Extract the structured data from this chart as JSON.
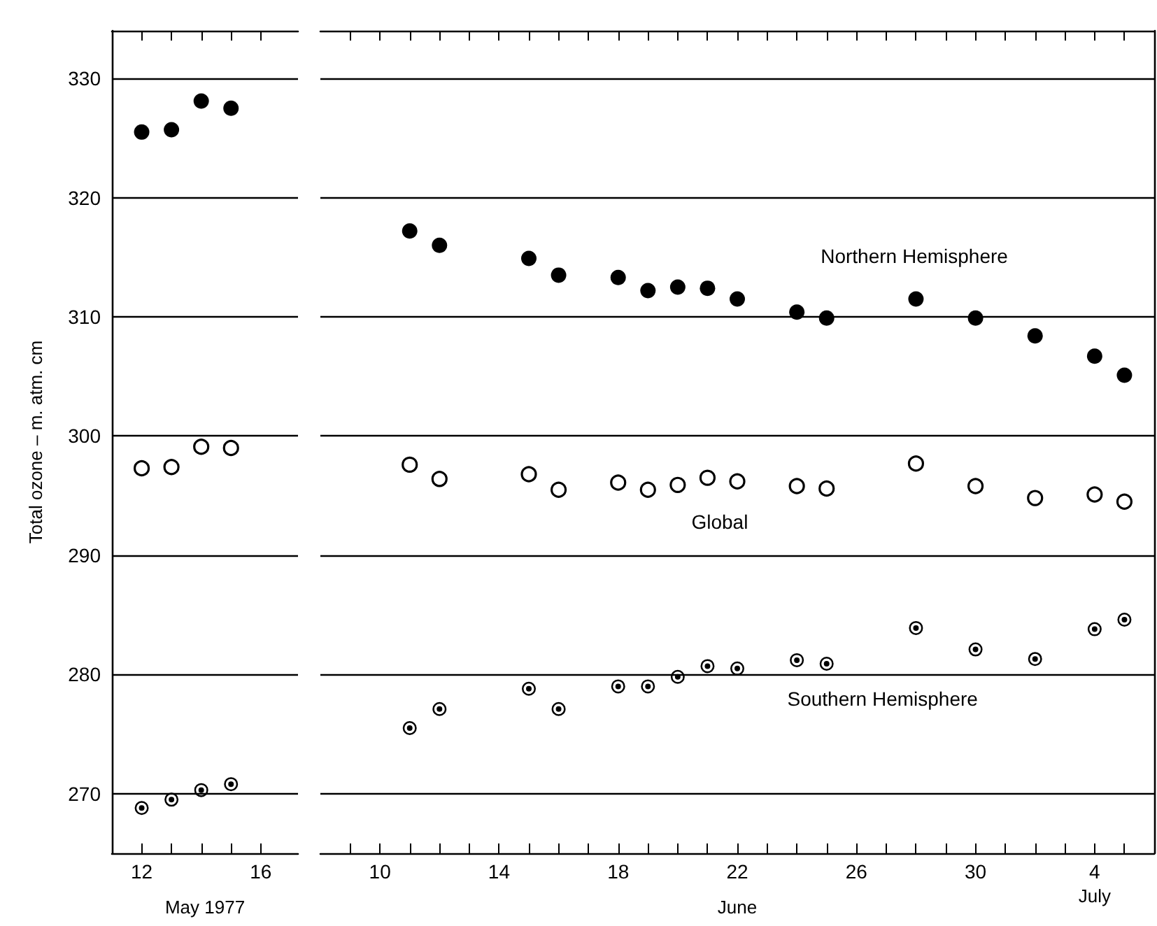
{
  "chart_data": [
    {
      "type": "scatter",
      "ylabel": "Total ozone – m. atm. cm",
      "xlabel": "May 1977",
      "x": [
        "1977-05-12",
        "1977-05-13",
        "1977-05-14",
        "1977-05-15"
      ],
      "series": [
        {
          "color": "#000000",
          "marker": "circle",
          "values": [
            325.5,
            325.7,
            328.1,
            327.5
          ]
        },
        {
          "color": "#000000",
          "marker": "circle",
          "values": [
            297.3,
            297.4,
            299.1,
            299.0
          ]
        },
        {
          "color": "#000000",
          "marker": "circle",
          "values": [
            268.8,
            269.5,
            270.3,
            270.8
          ]
        }
      ],
      "xlim": [
        "1977-05-11",
        "1977-05-17T06:00"
      ],
      "xticks": [
        {
          "value": "1977-05-12",
          "label": "12"
        },
        {
          "value": "1977-05-13",
          "label": null
        },
        {
          "value": "1977-05-14",
          "label": null
        },
        {
          "value": "1977-05-15",
          "label": null
        },
        {
          "value": "1977-05-16",
          "label": "16"
        }
      ],
      "ylim": [
        265,
        334
      ],
      "yticks": [
        270,
        280,
        290,
        300,
        310,
        320,
        330
      ],
      "grid": "y",
      "legend": false
    },
    {
      "type": "scatter",
      "xlabel": "June",
      "annotations": [
        "July"
      ],
      "x": [
        "1977-06-11",
        "1977-06-12",
        "1977-06-15",
        "1977-06-16",
        "1977-06-18",
        "1977-06-19",
        "1977-06-20",
        "1977-06-21",
        "1977-06-22",
        "1977-06-24",
        "1977-06-25",
        "1977-06-28",
        "1977-06-30",
        "1977-07-02",
        "1977-07-04",
        "1977-07-05"
      ],
      "series": [
        {
          "name": "Northern Hemisphere",
          "color": "#000000",
          "marker": "circle",
          "values": [
            317.2,
            316.0,
            314.9,
            313.5,
            313.3,
            312.2,
            312.5,
            312.4,
            311.5,
            310.4,
            309.9,
            311.5,
            309.9,
            308.4,
            306.7,
            305.1
          ]
        },
        {
          "name": "Global",
          "color": "#000000",
          "marker": "circle",
          "values": [
            297.6,
            296.4,
            296.8,
            295.5,
            296.1,
            295.5,
            295.9,
            296.5,
            296.2,
            295.8,
            295.6,
            297.7,
            295.8,
            294.8,
            295.1,
            294.5
          ]
        },
        {
          "name": "Southern Hemisphere",
          "color": "#000000",
          "marker": "circle",
          "values": [
            275.5,
            277.1,
            278.8,
            277.1,
            279.0,
            279.0,
            279.8,
            280.7,
            280.5,
            281.2,
            280.9,
            283.9,
            282.1,
            281.3,
            283.8,
            284.6
          ]
        }
      ],
      "xlim": [
        "1977-06-08",
        "1977-07-06"
      ],
      "xticks": [
        {
          "value": "1977-06-09",
          "label": null
        },
        {
          "value": "1977-06-10",
          "label": "10"
        },
        {
          "value": "1977-06-11",
          "label": null
        },
        {
          "value": "1977-06-12",
          "label": null
        },
        {
          "value": "1977-06-13",
          "label": null
        },
        {
          "value": "1977-06-14",
          "label": "14"
        },
        {
          "value": "1977-06-15",
          "label": null
        },
        {
          "value": "1977-06-16",
          "label": null
        },
        {
          "value": "1977-06-17",
          "label": null
        },
        {
          "value": "1977-06-18",
          "label": "18"
        },
        {
          "value": "1977-06-19",
          "label": null
        },
        {
          "value": "1977-06-20",
          "label": null
        },
        {
          "value": "1977-06-21",
          "label": null
        },
        {
          "value": "1977-06-22",
          "label": "22"
        },
        {
          "value": "1977-06-23",
          "label": null
        },
        {
          "value": "1977-06-24",
          "label": null
        },
        {
          "value": "1977-06-25",
          "label": null
        },
        {
          "value": "1977-06-26",
          "label": "26"
        },
        {
          "value": "1977-06-27",
          "label": null
        },
        {
          "value": "1977-06-28",
          "label": null
        },
        {
          "value": "1977-06-29",
          "label": null
        },
        {
          "value": "1977-06-30",
          "label": "30"
        },
        {
          "value": "1977-07-01",
          "label": null
        },
        {
          "value": "1977-07-02",
          "label": null
        },
        {
          "value": "1977-07-03",
          "label": null
        },
        {
          "value": "1977-07-04",
          "label": "4"
        },
        {
          "value": "1977-07-05",
          "label": null
        }
      ],
      "ylim": [
        265,
        334
      ],
      "yticks": [
        270,
        280,
        290,
        300,
        310,
        320,
        330
      ],
      "grid": "y",
      "legend": false,
      "tick_labels": "x"
    }
  ]
}
